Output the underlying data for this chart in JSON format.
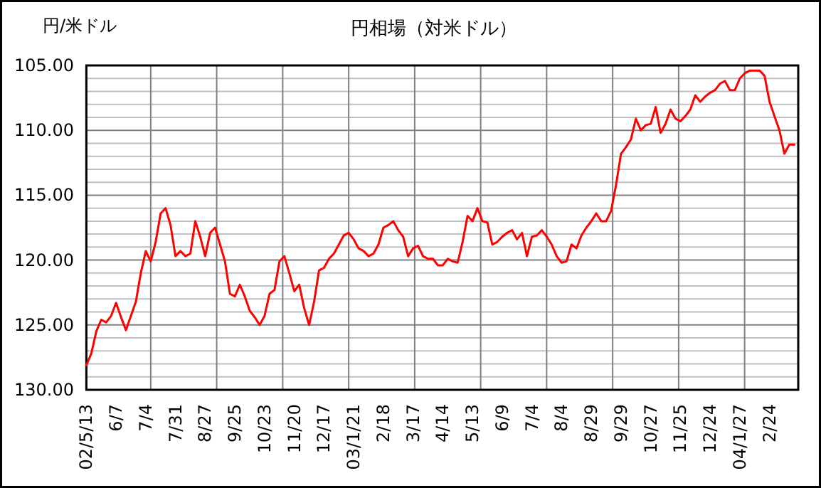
{
  "chart_data": {
    "type": "line",
    "title": "円相場（対米ドル）",
    "ylabel": "円/米ドル",
    "categories": [
      "02/5/13",
      null,
      null,
      null,
      null,
      null,
      "6/7",
      null,
      null,
      null,
      null,
      null,
      "7/4",
      null,
      null,
      null,
      null,
      null,
      "7/31",
      null,
      null,
      null,
      null,
      null,
      "8/27",
      null,
      null,
      null,
      null,
      null,
      "9/25",
      null,
      null,
      null,
      null,
      null,
      "10/23",
      null,
      null,
      null,
      null,
      null,
      "11/20",
      null,
      null,
      null,
      null,
      null,
      "12/17",
      null,
      null,
      null,
      null,
      null,
      "03/1/21",
      null,
      null,
      null,
      null,
      null,
      "2/18",
      null,
      null,
      null,
      null,
      null,
      "3/17",
      null,
      null,
      null,
      null,
      null,
      "4/14",
      null,
      null,
      null,
      null,
      null,
      "5/13",
      null,
      null,
      null,
      null,
      null,
      "6/9",
      null,
      null,
      null,
      null,
      null,
      "7/4",
      null,
      null,
      null,
      null,
      null,
      "8/4",
      null,
      null,
      null,
      null,
      null,
      "8/29",
      null,
      null,
      null,
      null,
      null,
      "9/29",
      null,
      null,
      null,
      null,
      null,
      "10/27",
      null,
      null,
      null,
      null,
      null,
      "11/25",
      null,
      null,
      null,
      null,
      null,
      "12/24",
      null,
      null,
      null,
      null,
      null,
      "04/1/27",
      null,
      null,
      null,
      null,
      null,
      "2/24",
      null,
      null,
      null,
      null,
      null
    ],
    "series": [
      {
        "color": "#ff0000",
        "values": [
          128.1,
          127.2,
          125.5,
          124.6,
          124.8,
          124.3,
          123.3,
          124.4,
          125.4,
          124.3,
          123.2,
          121.0,
          119.3,
          120.1,
          118.6,
          116.4,
          116.0,
          117.3,
          119.7,
          119.3,
          119.7,
          119.5,
          117.0,
          118.2,
          119.7,
          117.9,
          117.5,
          118.8,
          120.1,
          122.6,
          122.8,
          121.9,
          122.8,
          123.9,
          124.4,
          125.0,
          124.3,
          122.6,
          122.3,
          120.1,
          119.7,
          121.0,
          122.4,
          121.9,
          123.7,
          125.0,
          123.2,
          120.8,
          120.6,
          119.9,
          119.5,
          118.8,
          118.1,
          117.9,
          118.4,
          119.1,
          119.3,
          119.7,
          119.5,
          118.8,
          117.5,
          117.3,
          117.0,
          117.7,
          118.2,
          119.7,
          119.1,
          118.9,
          119.7,
          119.9,
          119.9,
          120.4,
          120.4,
          119.9,
          120.1,
          120.2,
          118.6,
          116.6,
          117.0,
          116.0,
          117.0,
          117.1,
          118.8,
          118.6,
          118.2,
          117.9,
          117.7,
          118.4,
          117.9,
          119.7,
          118.2,
          118.1,
          117.7,
          118.2,
          118.8,
          119.7,
          120.2,
          120.1,
          118.8,
          119.1,
          118.1,
          117.5,
          117.0,
          116.4,
          117.0,
          117.0,
          116.2,
          114.2,
          111.8,
          111.3,
          110.7,
          109.1,
          110.0,
          109.6,
          109.5,
          108.2,
          110.2,
          109.5,
          108.4,
          109.1,
          109.3,
          108.9,
          108.4,
          107.3,
          107.8,
          107.4,
          107.1,
          106.9,
          106.4,
          106.2,
          106.9,
          106.9,
          106.0,
          105.6,
          105.4,
          105.4,
          105.4,
          105.8,
          107.8,
          108.9,
          110.0,
          111.8,
          111.1,
          111.1
        ]
      }
    ],
    "ylim": [
      130,
      105
    ],
    "yticks": [
      {
        "value": 105,
        "label": "105.00"
      },
      {
        "value": 110,
        "label": "110.00"
      },
      {
        "value": 115,
        "label": "115.00"
      },
      {
        "value": 120,
        "label": "120.00"
      },
      {
        "value": 125,
        "label": "125.00"
      },
      {
        "value": 130,
        "label": "130.00"
      }
    ],
    "grid": true
  }
}
